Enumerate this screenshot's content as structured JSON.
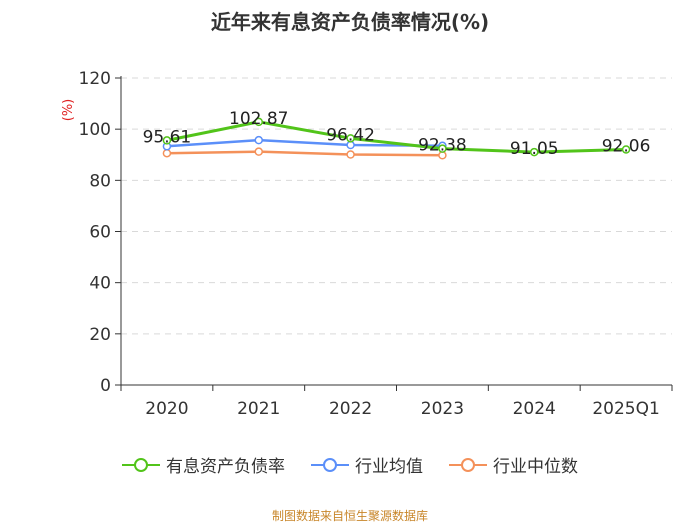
{
  "title": "近年来有息资产负债率情况(%)",
  "source": "制图数据来自恒生聚源数据库",
  "chart_data": {
    "type": "line",
    "title": "近年来有息资产负债率情况(%)",
    "ylabel": "(%)",
    "ylim": [
      0,
      120
    ],
    "yticks": [
      0,
      20,
      40,
      60,
      80,
      100,
      120
    ],
    "categories": [
      "2020",
      "2021",
      "2022",
      "2023",
      "2024",
      "2025Q1"
    ],
    "series": [
      {
        "name": "有息资产负债率",
        "color": "#52c41a",
        "values": [
          95.61,
          102.87,
          96.42,
          92.38,
          91.05,
          92.06
        ],
        "labels": [
          "95.61",
          "102.87",
          "96.42",
          "92.38",
          "91.05",
          "92.06"
        ]
      },
      {
        "name": "行业均值",
        "color": "#5b8ff9",
        "values": [
          93.3,
          95.7,
          93.8,
          93.5,
          null,
          null
        ]
      },
      {
        "name": "行业中位数",
        "color": "#f4915a",
        "values": [
          90.6,
          91.2,
          90.1,
          89.8,
          null,
          null
        ]
      }
    ],
    "legend_position": "bottom"
  }
}
